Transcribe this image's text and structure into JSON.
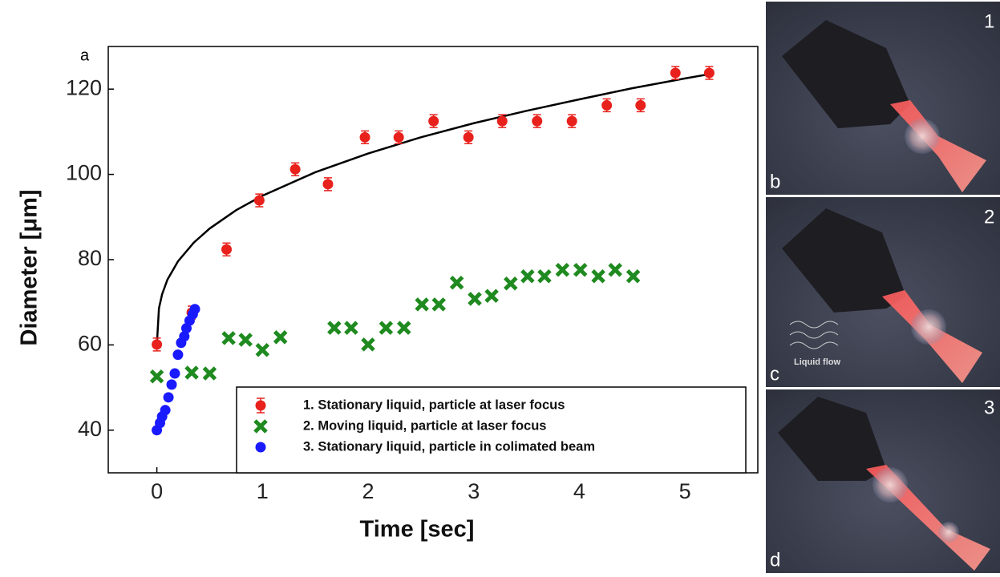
{
  "chart_data": {
    "type": "scatter",
    "panel_label": "a",
    "x_label": "Time [sec]",
    "y_label": "Diameter [μm]",
    "xlim": [
      -0.46,
      5.69
    ],
    "ylim": [
      30,
      130
    ],
    "xticks": [
      0,
      1,
      2,
      3,
      4,
      5
    ],
    "yticks": [
      40,
      60,
      80,
      100,
      120
    ],
    "legend": "lower right",
    "series": [
      {
        "name": "1. Stationary liquid, particle at laser focus",
        "color": "#e8211c",
        "marker": "circle",
        "x": [
          0,
          0.33,
          0.66,
          0.97,
          1.31,
          1.62,
          1.97,
          2.29,
          2.62,
          2.95,
          3.27,
          3.6,
          3.93,
          4.26,
          4.58,
          4.91,
          5.23
        ],
        "values": [
          60.1,
          67.6,
          82.4,
          93.9,
          101.2,
          97.7,
          108.7,
          108.7,
          112.5,
          108.7,
          112.5,
          112.5,
          112.5,
          116.2,
          116.2,
          123.8,
          123.8
        ],
        "errors": [
          1.5,
          1.5,
          1.5,
          1.5,
          1.5,
          1.5,
          1.5,
          1.5,
          1.5,
          1.5,
          1.5,
          1.5,
          1.5,
          1.5,
          1.5,
          1.5,
          1.5
        ]
      },
      {
        "name": "2. Moving liquid, particle at laser focus",
        "color": "#1f8a1f",
        "marker": "x",
        "x": [
          0,
          0.33,
          0.5,
          0.68,
          0.84,
          1.0,
          1.17,
          1.68,
          1.84,
          2.0,
          2.17,
          2.34,
          2.51,
          2.67,
          2.84,
          3.01,
          3.17,
          3.35,
          3.51,
          3.67,
          3.84,
          4.01,
          4.18,
          4.34,
          4.51
        ],
        "values": [
          52.6,
          53.5,
          53.3,
          61.6,
          61.2,
          58.8,
          61.8,
          64.0,
          64.0,
          60.1,
          64.0,
          64.0,
          69.5,
          69.5,
          74.6,
          70.8,
          71.5,
          74.4,
          76.1,
          76.1,
          77.6,
          77.6,
          76.1,
          77.6,
          76.1
        ]
      },
      {
        "name": "3. Stationary liquid, particle in colimated beam",
        "color": "#1a1aff",
        "marker": "circle",
        "x": [
          0,
          0.03,
          0.05,
          0.08,
          0.11,
          0.14,
          0.17,
          0.2,
          0.23,
          0.26,
          0.28,
          0.31,
          0.34,
          0.36
        ],
        "values": [
          40,
          41.7,
          43.2,
          44.7,
          47.7,
          50.7,
          53.3,
          57.7,
          60.5,
          62,
          63.9,
          65.7,
          67.2,
          68.4
        ]
      }
    ],
    "fit_curve": {
      "color": "#000000",
      "x": [
        0,
        0.02,
        0.05,
        0.1,
        0.2,
        0.35,
        0.5,
        0.75,
        1,
        1.5,
        2,
        2.5,
        3,
        3.5,
        4,
        4.5,
        5,
        5.23
      ],
      "values": [
        60,
        68.6,
        71.9,
        75.3,
        79.6,
        84.0,
        87.3,
        91.6,
        95,
        100.5,
        104.9,
        108.7,
        112.0,
        114.9,
        117.6,
        120.2,
        122.5,
        123.5
      ]
    }
  },
  "panels": [
    {
      "number": "1",
      "letter": "b"
    },
    {
      "number": "2",
      "letter": "c",
      "annotation": "Liquid flow"
    },
    {
      "number": "3",
      "letter": "d"
    }
  ]
}
